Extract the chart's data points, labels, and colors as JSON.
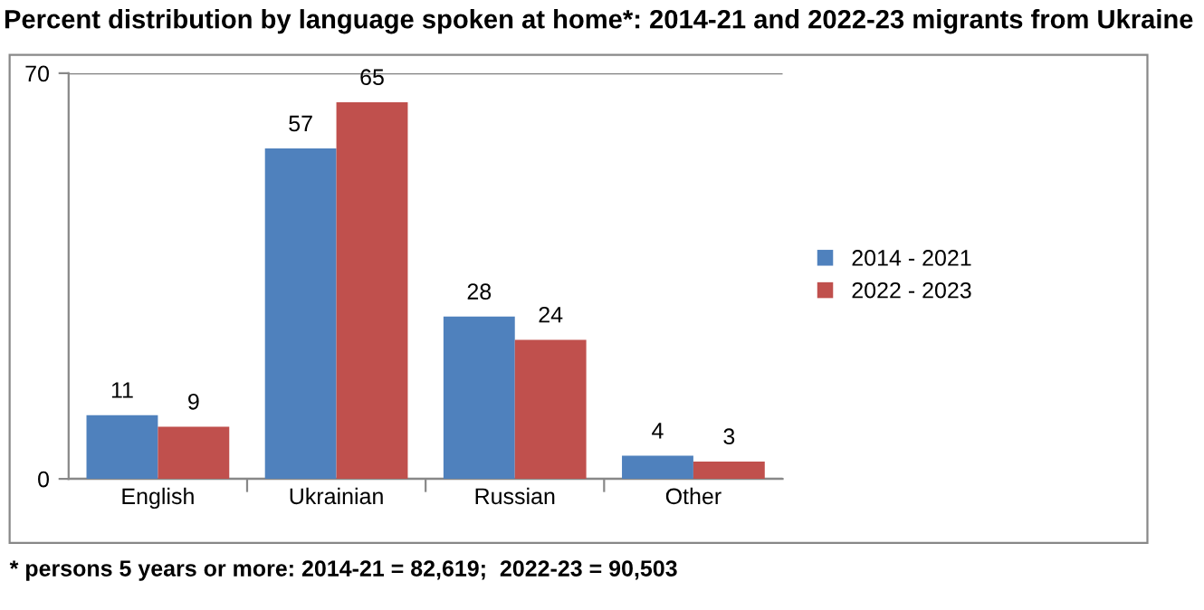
{
  "chart_data": {
    "type": "bar",
    "title": "Percent distribution by language spoken at home*: 2014-21 and 2022-23 migrants from Ukraine",
    "categories": [
      "English",
      "Ukrainian",
      "Russian",
      "Other"
    ],
    "series": [
      {
        "name": "2014 - 2021",
        "color": "#4f81bd",
        "values": [
          11,
          57,
          28,
          4
        ]
      },
      {
        "name": "2022 - 2023",
        "color": "#c0504d",
        "values": [
          9,
          65,
          24,
          3
        ]
      }
    ],
    "ylim": [
      0,
      70
    ],
    "yticks": [
      0,
      70
    ],
    "grid": "y",
    "legend": "right",
    "data_labels": true,
    "annotations": [
      "* persons 5 years or more: 2014-21 = 82,619;  2022-23 = 90,503"
    ]
  }
}
